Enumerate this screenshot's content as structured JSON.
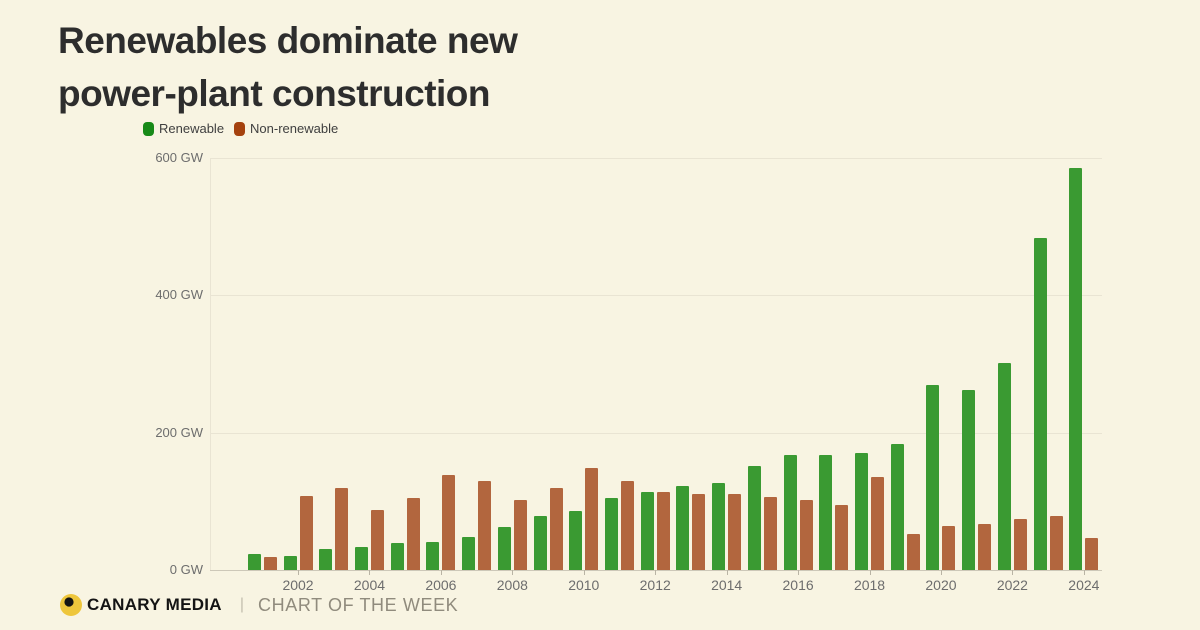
{
  "title": {
    "line1": "Renewables dominate new",
    "line2": "power-plant construction"
  },
  "legend": [
    {
      "label": "Renewable",
      "color": "#188a18"
    },
    {
      "label": "Non-renewable",
      "color": "#a5420e"
    }
  ],
  "footer": {
    "brand": "CANARY MEDIA",
    "divider": "|",
    "tagline": "CHART OF THE WEEK",
    "logo_colors": {
      "circle": "#eec63c",
      "dot": "#141414"
    }
  },
  "chart_data": {
    "type": "bar",
    "title": "Renewables dominate new power-plant construction",
    "unit": "GW",
    "ylim": [
      0,
      600
    ],
    "grid": "horizontal",
    "legend_position": "top-left",
    "categories": [
      2001,
      2002,
      2003,
      2004,
      2005,
      2006,
      2007,
      2008,
      2009,
      2010,
      2011,
      2012,
      2013,
      2014,
      2015,
      2016,
      2017,
      2018,
      2019,
      2020,
      2021,
      2022,
      2023,
      2024
    ],
    "series": [
      {
        "name": "Renewable",
        "color": "#3a9a32",
        "values": [
          23,
          20,
          31,
          34,
          40,
          41,
          48,
          62,
          79,
          86,
          105,
          114,
          123,
          126,
          152,
          167,
          167,
          170,
          183,
          269,
          262,
          301,
          484,
          585
        ]
      },
      {
        "name": "Non-renewable",
        "color": "#b2663e",
        "values": [
          19,
          108,
          120,
          88,
          105,
          138,
          129,
          102,
          120,
          149,
          129,
          113,
          111,
          111,
          107,
          102,
          94,
          135,
          53,
          64,
          67,
          75,
          79,
          47
        ]
      }
    ],
    "y_ticks": [
      {
        "v": 0,
        "label": "0 GW"
      },
      {
        "v": 200,
        "label": "200 GW"
      },
      {
        "v": 400,
        "label": "400 GW"
      },
      {
        "v": 600,
        "label": "600 GW"
      }
    ],
    "x_ticks": [
      2002,
      2004,
      2006,
      2008,
      2010,
      2012,
      2014,
      2016,
      2018,
      2020,
      2022,
      2024
    ]
  }
}
